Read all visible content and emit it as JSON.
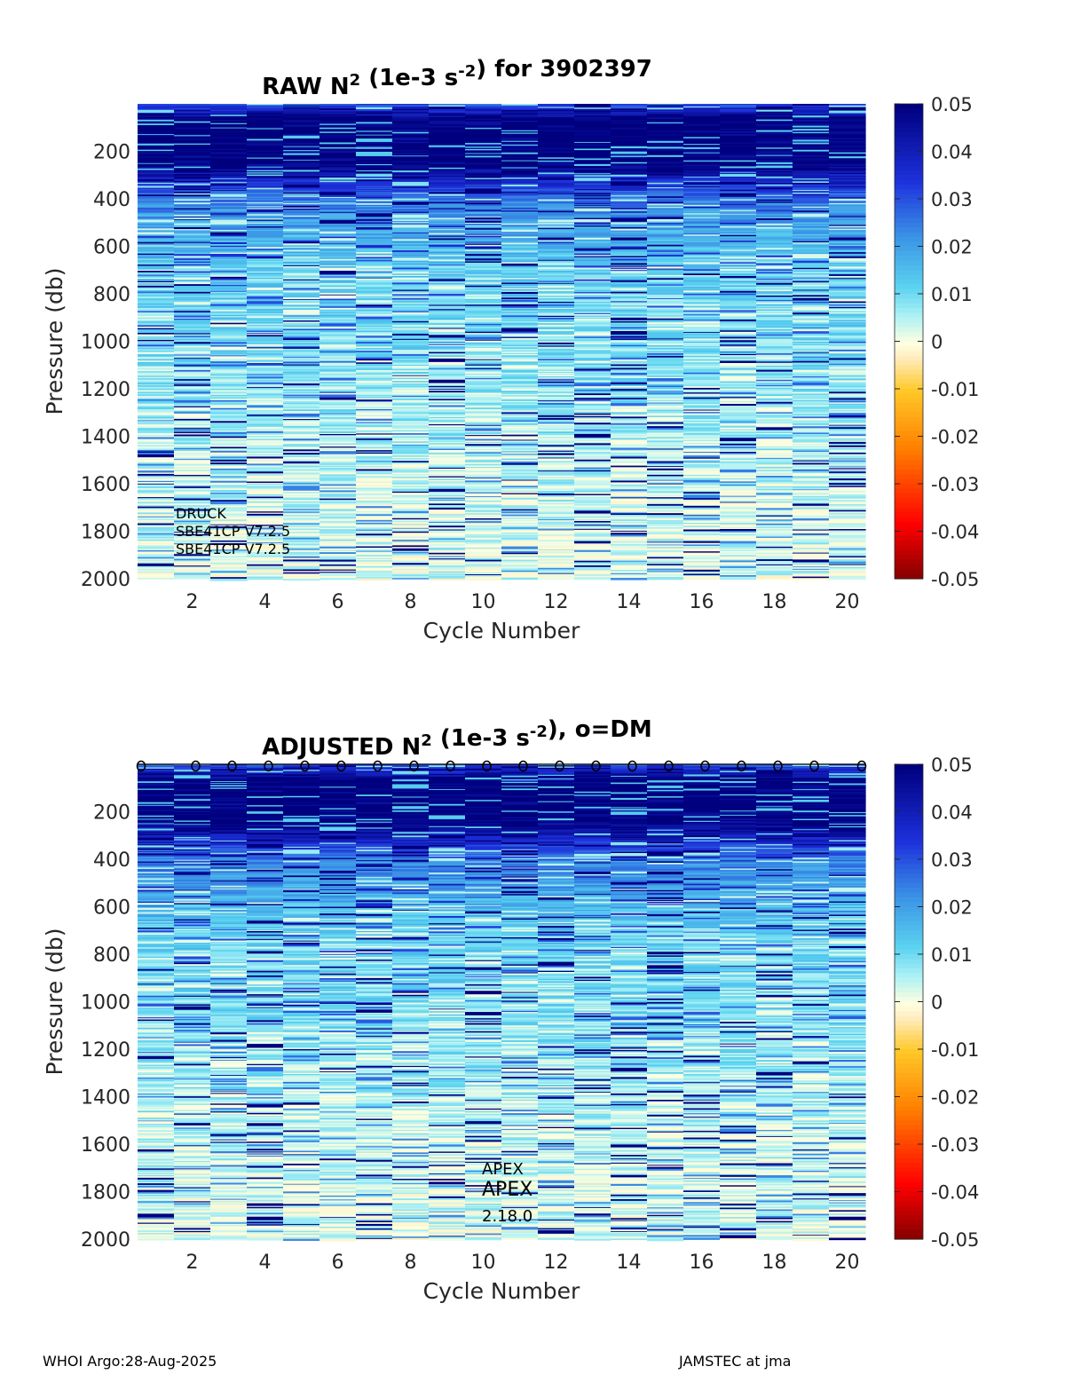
{
  "chart_data": [
    {
      "type": "heatmap",
      "title_prefix": "RAW N",
      "title_sup": "2",
      "title_mid": " (1e-3 s",
      "title_sup2": "-2",
      "title_suffix": ") for 3902397",
      "xlabel": "Cycle Number",
      "ylabel": "Pressure (db)",
      "xlim": [
        1,
        20
      ],
      "ylim": [
        0,
        2000
      ],
      "y_reversed": true,
      "xticks": [
        "2",
        "4",
        "6",
        "8",
        "10",
        "12",
        "14",
        "16",
        "18",
        "20"
      ],
      "yticks": [
        "200",
        "400",
        "600",
        "800",
        "1000",
        "1200",
        "1400",
        "1600",
        "1800",
        "2000"
      ],
      "colorbar": {
        "min": -0.05,
        "max": 0.05,
        "ticks": [
          "0.05",
          "0.04",
          "0.03",
          "0.02",
          "0.01",
          "0",
          "-0.01",
          "-0.02",
          "-0.03",
          "-0.04",
          "-0.05"
        ]
      },
      "cycles": [
        1,
        2,
        3,
        4,
        5,
        6,
        7,
        8,
        9,
        10,
        11,
        12,
        13,
        14,
        15,
        16,
        17,
        18,
        19,
        20
      ],
      "value_profile": [
        {
          "pressure": 0,
          "n2": 0.03
        },
        {
          "pressure": 60,
          "n2": 0.05
        },
        {
          "pressure": 250,
          "n2": 0.05
        },
        {
          "pressure": 400,
          "n2": 0.025
        },
        {
          "pressure": 700,
          "n2": 0.012
        },
        {
          "pressure": 1100,
          "n2": 0.009
        },
        {
          "pressure": 1500,
          "n2": 0.005
        },
        {
          "pressure": 2000,
          "n2": 0.003
        }
      ],
      "annotations": [
        "DRUCK",
        "SBE41CP V7.2.5",
        "SBE41CP V7.2.5"
      ]
    },
    {
      "type": "heatmap",
      "title_prefix": "ADJUSTED N",
      "title_sup": "2",
      "title_mid": " (1e-3 s",
      "title_sup2": "-2",
      "title_suffix": "), o=DM",
      "xlabel": "Cycle Number",
      "ylabel": "Pressure (db)",
      "xlim": [
        1,
        20
      ],
      "ylim": [
        0,
        2000
      ],
      "y_reversed": true,
      "xticks": [
        "2",
        "4",
        "6",
        "8",
        "10",
        "12",
        "14",
        "16",
        "18",
        "20"
      ],
      "yticks": [
        "200",
        "400",
        "600",
        "800",
        "1000",
        "1200",
        "1400",
        "1600",
        "1800",
        "2000"
      ],
      "colorbar": {
        "min": -0.05,
        "max": 0.05,
        "ticks": [
          "0.05",
          "0.04",
          "0.03",
          "0.02",
          "0.01",
          "0",
          "-0.01",
          "-0.02",
          "-0.03",
          "-0.04",
          "-0.05"
        ]
      },
      "cycles": [
        1,
        2,
        3,
        4,
        5,
        6,
        7,
        8,
        9,
        10,
        11,
        12,
        13,
        14,
        15,
        16,
        17,
        18,
        19,
        20
      ],
      "dm_marker_symbol": "o",
      "dm_cycles": [
        1,
        2,
        3,
        4,
        5,
        6,
        7,
        8,
        9,
        10,
        11,
        12,
        13,
        14,
        15,
        16,
        17,
        18,
        19,
        20
      ],
      "value_profile": [
        {
          "pressure": 0,
          "n2": 0.03
        },
        {
          "pressure": 60,
          "n2": 0.05
        },
        {
          "pressure": 230,
          "n2": 0.05
        },
        {
          "pressure": 400,
          "n2": 0.025
        },
        {
          "pressure": 700,
          "n2": 0.012
        },
        {
          "pressure": 1100,
          "n2": 0.009
        },
        {
          "pressure": 1500,
          "n2": 0.005
        },
        {
          "pressure": 2000,
          "n2": 0.003
        }
      ],
      "annotations": [
        "APEX",
        "APEX",
        "2.18.0"
      ]
    }
  ],
  "footer": {
    "left": "WHOI Argo:28-Aug-2025",
    "right": "JAMSTEC at jma"
  },
  "colors": {
    "dark_blue": "#00007f",
    "zero": "#ffffe0",
    "dark_red": "#7f0000"
  }
}
